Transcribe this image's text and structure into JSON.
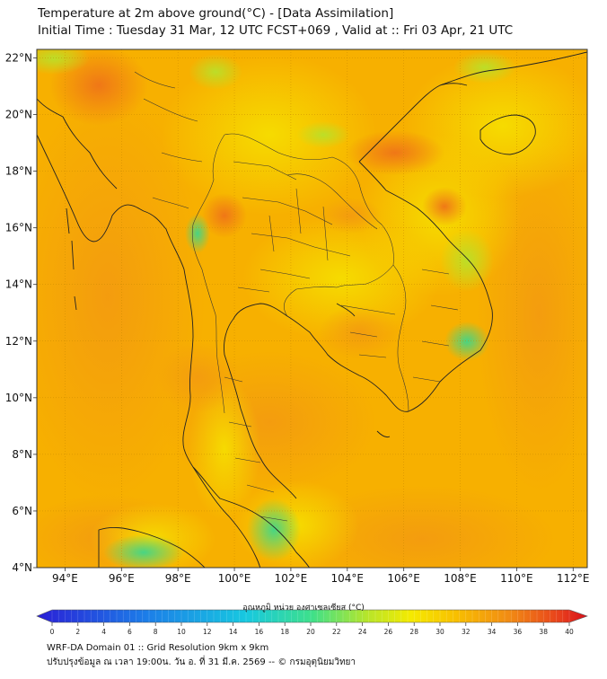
{
  "header": {
    "title_line1": "Temperature at 2m above ground(°C) - [Data Assimilation]",
    "title_line2": "Initial Time : Tuesday 31 Mar, 12 UTC FCST+069 , Valid at :: Fri 03 Apr, 21 UTC"
  },
  "map": {
    "lat_labels": [
      "22°N",
      "20°N",
      "18°N",
      "16°N",
      "14°N",
      "12°N",
      "10°N",
      "8°N",
      "6°N",
      "4°N"
    ],
    "lat_values": [
      22,
      20,
      18,
      16,
      14,
      12,
      10,
      8,
      6,
      4
    ],
    "lon_labels": [
      "94°E",
      "96°E",
      "98°E",
      "100°E",
      "102°E",
      "104°E",
      "106°E",
      "108°E",
      "110°E",
      "112°E"
    ],
    "lon_values": [
      94,
      96,
      98,
      100,
      102,
      104,
      106,
      108,
      110,
      112
    ],
    "lon_range": [
      93,
      112.5
    ],
    "lat_range": [
      4,
      22.3
    ],
    "colors": {
      "background": "#f7b400",
      "land": "#f2c200",
      "coast": "#222222",
      "hot": "#ef7a1a",
      "cool": "#9fdc30",
      "cold": "#44d680"
    }
  },
  "colorbar": {
    "label": "อุณหภูมิ หน่วย องศาเซลเซียส (°C)",
    "tick_labels": [
      "0",
      "2",
      "4",
      "6",
      "8",
      "10",
      "12",
      "14",
      "16",
      "18",
      "20",
      "22",
      "24",
      "26",
      "28",
      "30",
      "32",
      "34",
      "36",
      "38",
      "40"
    ],
    "min": 0,
    "max": 40
  },
  "footer": {
    "line1": "WRF-DA Domain 01 :: Grid Resolution 9km x 9km",
    "line2": "ปรับปรุงข้อมูล ณ เวลา 19:00น. วัน อ. ที่ 31 มี.ค. 2569 -- © กรมอุตุนิยมวิทยา"
  }
}
